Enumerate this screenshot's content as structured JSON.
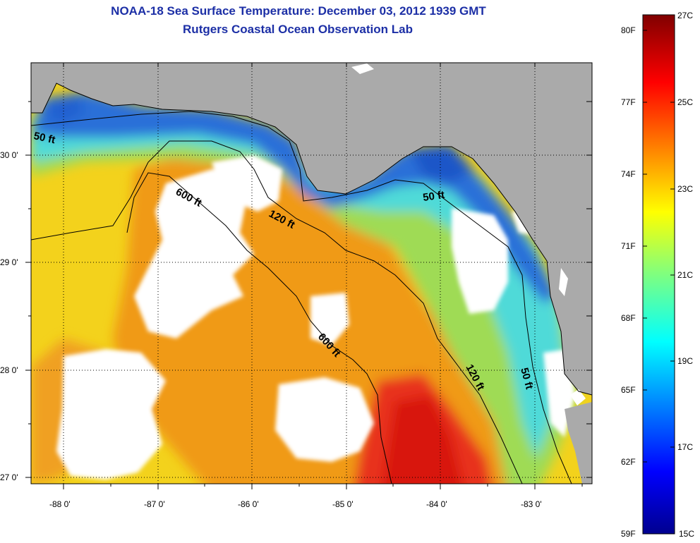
{
  "header": {
    "title_line1": "NOAA-18 Sea Surface Temperature:  December 03, 2012 1939 GMT",
    "title_line2": "Rutgers Coastal Ocean Observation Lab"
  },
  "map": {
    "region": "Northeastern Gulf of Mexico / Florida Big Bend",
    "lat_range": [
      26.97,
      30.87
    ],
    "lon_range": [
      -88.33,
      -82.48
    ],
    "lat_ticks": [
      "27 0'",
      "28 0'",
      "29 0'",
      "30 0'"
    ],
    "lon_ticks": [
      "-88 0'",
      "-87 0'",
      "-86 0'",
      "-85 0'",
      "-84 0'",
      "-83 0'"
    ],
    "contour_labels": [
      "50 ft",
      "600 ft",
      "120 ft",
      "50 ft",
      "600 ft",
      "120 ft",
      "50 ft"
    ],
    "colors": {
      "land": "#aaaaaa",
      "cloud": "#ffffff"
    }
  },
  "colorbar": {
    "min_c": 15,
    "max_c": 27,
    "fahrenheit_labels": [
      "80F",
      "77F",
      "74F",
      "71F",
      "68F",
      "65F",
      "62F",
      "59F"
    ],
    "celsius_labels": [
      "27C",
      "25C",
      "23C",
      "21C",
      "19C",
      "17C",
      "15C"
    ]
  }
}
